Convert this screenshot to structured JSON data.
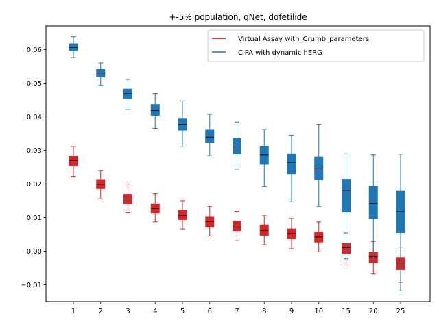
{
  "chart_data": {
    "type": "box",
    "title": "+-5% population, qNet, dofetilide",
    "xlabel": "",
    "ylabel": "",
    "categories": [
      "1",
      "2",
      "3",
      "4",
      "5",
      "6",
      "7",
      "8",
      "9",
      "10",
      "15",
      "20",
      "25"
    ],
    "ylim": [
      -0.015,
      0.067
    ],
    "yticks": [
      -0.01,
      0.0,
      0.01,
      0.02,
      0.03,
      0.04,
      0.05,
      0.06
    ],
    "ytick_labels": [
      "−0.01",
      "0.00",
      "0.01",
      "0.02",
      "0.03",
      "0.04",
      "0.05",
      "0.06"
    ],
    "grid": false,
    "legend_position": "top-right",
    "series": [
      {
        "name": "Virtual Assay with_Crumb_parameters",
        "color": "#d62728",
        "line_color": "#cc0000",
        "boxes": [
          {
            "whislo": 0.0222,
            "q1": 0.0255,
            "median": 0.027,
            "q3": 0.0283,
            "whishi": 0.0311
          },
          {
            "whislo": 0.0155,
            "q1": 0.0186,
            "median": 0.0199,
            "q3": 0.0213,
            "whishi": 0.024
          },
          {
            "whislo": 0.0114,
            "q1": 0.0142,
            "median": 0.0155,
            "q3": 0.0169,
            "whishi": 0.02
          },
          {
            "whislo": 0.0087,
            "q1": 0.0114,
            "median": 0.0127,
            "q3": 0.0141,
            "whishi": 0.0171
          },
          {
            "whislo": 0.0066,
            "q1": 0.0094,
            "median": 0.0107,
            "q3": 0.0121,
            "whishi": 0.015
          },
          {
            "whislo": 0.0045,
            "q1": 0.0073,
            "median": 0.0088,
            "q3": 0.0103,
            "whishi": 0.0133
          },
          {
            "whislo": 0.0031,
            "q1": 0.0061,
            "median": 0.0075,
            "q3": 0.0089,
            "whishi": 0.0118
          },
          {
            "whislo": 0.0019,
            "q1": 0.0047,
            "median": 0.0062,
            "q3": 0.0078,
            "whishi": 0.0107
          },
          {
            "whislo": 0.0007,
            "q1": 0.0038,
            "median": 0.0052,
            "q3": 0.0066,
            "whishi": 0.0097
          },
          {
            "whislo": -0.0002,
            "q1": 0.0027,
            "median": 0.0042,
            "q3": 0.0057,
            "whishi": 0.0087
          },
          {
            "whislo": -0.0041,
            "q1": -0.0007,
            "median": 0.001,
            "q3": 0.0023,
            "whishi": 0.0054
          },
          {
            "whislo": -0.0068,
            "q1": -0.0034,
            "median": -0.0017,
            "q3": -0.0003,
            "whishi": 0.0029
          },
          {
            "whislo": -0.0093,
            "q1": -0.0055,
            "median": -0.0035,
            "q3": -0.0019,
            "whishi": 0.0012
          }
        ]
      },
      {
        "name": "CiPA with dynamic hERG",
        "color": "#1f77b4",
        "line_color": "#1f77b4",
        "boxes": [
          {
            "whislo": 0.0576,
            "q1": 0.0597,
            "median": 0.0606,
            "q3": 0.0617,
            "whishi": 0.0638
          },
          {
            "whislo": 0.0493,
            "q1": 0.0518,
            "median": 0.053,
            "q3": 0.0541,
            "whishi": 0.056
          },
          {
            "whislo": 0.0421,
            "q1": 0.0455,
            "median": 0.047,
            "q3": 0.0482,
            "whishi": 0.0511
          },
          {
            "whislo": 0.0365,
            "q1": 0.0404,
            "median": 0.0418,
            "q3": 0.0436,
            "whishi": 0.0469
          },
          {
            "whislo": 0.031,
            "q1": 0.036,
            "median": 0.0377,
            "q3": 0.0395,
            "whishi": 0.0447
          },
          {
            "whislo": 0.0284,
            "q1": 0.0324,
            "median": 0.0339,
            "q3": 0.0362,
            "whishi": 0.0407
          },
          {
            "whislo": 0.0244,
            "q1": 0.029,
            "median": 0.031,
            "q3": 0.0335,
            "whishi": 0.0384
          },
          {
            "whislo": 0.0192,
            "q1": 0.0258,
            "median": 0.0287,
            "q3": 0.0312,
            "whishi": 0.0362
          },
          {
            "whislo": 0.0147,
            "q1": 0.023,
            "median": 0.0264,
            "q3": 0.029,
            "whishi": 0.0345
          },
          {
            "whislo": 0.0133,
            "q1": 0.0213,
            "median": 0.0245,
            "q3": 0.028,
            "whishi": 0.0377
          },
          {
            "whislo": -0.0023,
            "q1": 0.0116,
            "median": 0.018,
            "q3": 0.0214,
            "whishi": 0.029
          },
          {
            "whislo": -0.0019,
            "q1": 0.0097,
            "median": 0.0142,
            "q3": 0.0193,
            "whishi": 0.0287
          },
          {
            "whislo": -0.0118,
            "q1": 0.0055,
            "median": 0.0117,
            "q3": 0.018,
            "whishi": 0.0289
          }
        ]
      }
    ]
  }
}
